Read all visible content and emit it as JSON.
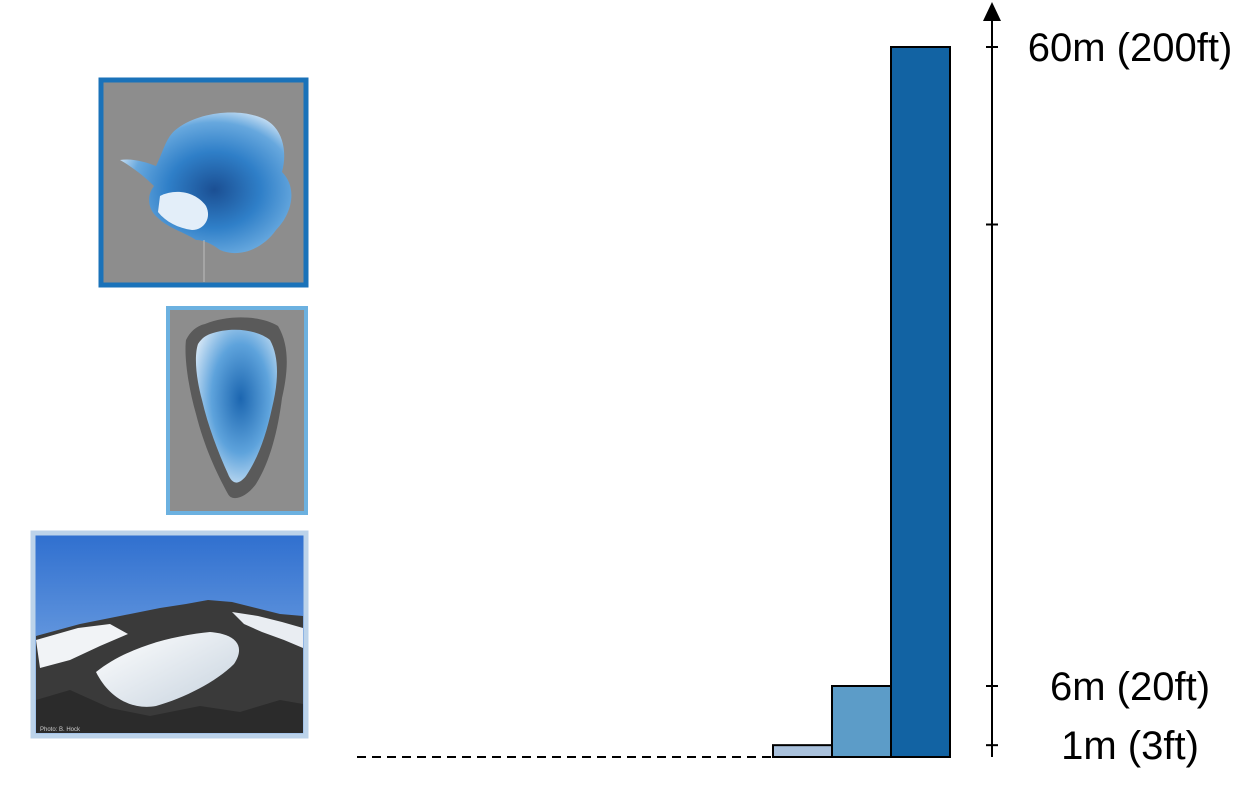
{
  "chart_data": {
    "type": "bar",
    "categories": [
      "Mountain glaciers",
      "Greenland ice sheet",
      "Antarctic ice sheet"
    ],
    "values": [
      1,
      6,
      60
    ],
    "colors": [
      "#a9c1dc",
      "#5c9cc8",
      "#1263a3"
    ],
    "frame_colors": [
      "#bcd3ea",
      "#6cb1e0",
      "#1a72b9"
    ],
    "ylim": [
      0,
      60
    ],
    "yticks": [
      {
        "value": 1,
        "label": "1m (3ft)"
      },
      {
        "value": 6,
        "label": "6m (20ft)"
      },
      {
        "value": 45,
        "label": ""
      },
      {
        "value": 60,
        "label": "60m (200ft)"
      }
    ],
    "baseline": "dashed",
    "grid": false,
    "legend": "none",
    "title": "",
    "xlabel": "",
    "ylabel": ""
  },
  "images": {
    "antarctica": "antarctica-ice-map",
    "greenland": "greenland-ice-map",
    "glacier": "mountain-glacier-photo"
  },
  "photo_credit": "Photo: B. Hock"
}
